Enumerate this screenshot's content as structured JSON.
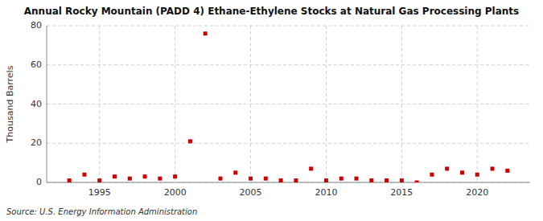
{
  "chart_data": {
    "type": "scatter",
    "title": "Annual Rocky Mountain (PADD 4) Ethane-Ethylene Stocks at Natural Gas Processing Plants",
    "ylabel": "Thousand Barrels",
    "source": "Source: U.S. Energy Information Administration",
    "x": [
      1993,
      1994,
      1995,
      1996,
      1997,
      1998,
      1999,
      2000,
      2001,
      2002,
      2003,
      2004,
      2005,
      2006,
      2007,
      2008,
      2009,
      2010,
      2011,
      2012,
      2013,
      2014,
      2015,
      2016,
      2017,
      2018,
      2019,
      2020,
      2021,
      2022
    ],
    "values": [
      1,
      4,
      1,
      3,
      2,
      3,
      2,
      3,
      21,
      76,
      2,
      5,
      2,
      2,
      1,
      1,
      7,
      1,
      2,
      2,
      1,
      1,
      1,
      0,
      4,
      7,
      5,
      4,
      7,
      6
    ],
    "color": "#cc0000",
    "marker": "square",
    "xlim": [
      1991.5,
      2023.5
    ],
    "xticks": [
      1995,
      2000,
      2005,
      2010,
      2015,
      2020
    ],
    "ylim": [
      0,
      80
    ],
    "yticks": [
      0,
      20,
      40,
      60,
      80
    ],
    "grid": true
  }
}
